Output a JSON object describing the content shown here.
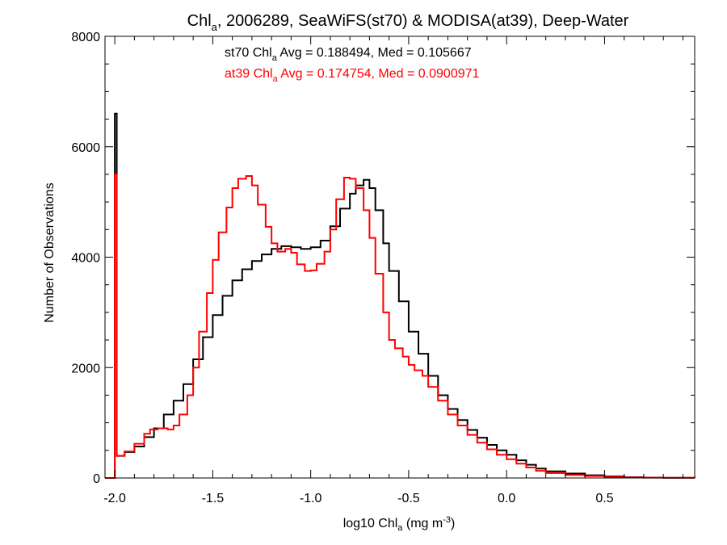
{
  "chart_data": {
    "type": "line",
    "step": true,
    "title": {
      "pre": "Chl",
      "sub": "a",
      "post": ", 2006289, SeaWiFS(st70) & MODISA(at39), Deep-Water"
    },
    "xlabel": {
      "pre": "log10 Chl",
      "sub": "a",
      "mid": " (mg m",
      "sup": "-3",
      "post": ")"
    },
    "ylabel": "Number of Observations",
    "xlim": [
      -2.05,
      0.96
    ],
    "ylim": [
      0,
      8000
    ],
    "xticks": [
      {
        "value": -2.0,
        "label": "-2.0"
      },
      {
        "value": -1.5,
        "label": "-1.5"
      },
      {
        "value": -1.0,
        "label": "-1.0"
      },
      {
        "value": -0.5,
        "label": "-0.5"
      },
      {
        "value": 0.0,
        "label": "0.0"
      },
      {
        "value": 0.5,
        "label": "0.5"
      }
    ],
    "yticks": [
      {
        "value": 0,
        "label": "0"
      },
      {
        "value": 2000,
        "label": "2000"
      },
      {
        "value": 4000,
        "label": "4000"
      },
      {
        "value": 6000,
        "label": "6000"
      },
      {
        "value": 8000,
        "label": "8000"
      }
    ],
    "grid": false,
    "annotations": [
      {
        "series": "st70",
        "pre": "st70 Chl",
        "sub": "a",
        "post": " Avg = 0.188494, Med = 0.105667",
        "color": "#000000"
      },
      {
        "series": "at39",
        "pre": "at39 Chl",
        "sub": "a",
        "post": " Avg = 0.174754, Med = 0.0900971",
        "color": "#ff0000"
      }
    ],
    "series": [
      {
        "name": "st70",
        "color": "#000000",
        "points": [
          [
            -2.05,
            0
          ],
          [
            -2.0,
            0
          ],
          [
            -2.0,
            6600
          ],
          [
            -1.99,
            6600
          ],
          [
            -1.99,
            400
          ],
          [
            -1.95,
            470
          ],
          [
            -1.9,
            570
          ],
          [
            -1.85,
            740
          ],
          [
            -1.8,
            900
          ],
          [
            -1.75,
            1150
          ],
          [
            -1.7,
            1400
          ],
          [
            -1.65,
            1700
          ],
          [
            -1.6,
            2150
          ],
          [
            -1.55,
            2550
          ],
          [
            -1.5,
            2950
          ],
          [
            -1.45,
            3300
          ],
          [
            -1.4,
            3580
          ],
          [
            -1.35,
            3780
          ],
          [
            -1.3,
            3930
          ],
          [
            -1.25,
            4050
          ],
          [
            -1.2,
            4150
          ],
          [
            -1.15,
            4200
          ],
          [
            -1.1,
            4180
          ],
          [
            -1.05,
            4150
          ],
          [
            -1.0,
            4180
          ],
          [
            -0.95,
            4300
          ],
          [
            -0.9,
            4560
          ],
          [
            -0.85,
            4880
          ],
          [
            -0.8,
            5150
          ],
          [
            -0.77,
            5300
          ],
          [
            -0.73,
            5400
          ],
          [
            -0.7,
            5250
          ],
          [
            -0.67,
            4850
          ],
          [
            -0.63,
            4250
          ],
          [
            -0.6,
            3750
          ],
          [
            -0.55,
            3200
          ],
          [
            -0.5,
            2650
          ],
          [
            -0.45,
            2250
          ],
          [
            -0.4,
            1850
          ],
          [
            -0.35,
            1500
          ],
          [
            -0.3,
            1250
          ],
          [
            -0.25,
            1050
          ],
          [
            -0.2,
            870
          ],
          [
            -0.15,
            730
          ],
          [
            -0.1,
            600
          ],
          [
            -0.05,
            500
          ],
          [
            0.0,
            420
          ],
          [
            0.05,
            320
          ],
          [
            0.1,
            240
          ],
          [
            0.15,
            170
          ],
          [
            0.2,
            120
          ],
          [
            0.3,
            80
          ],
          [
            0.4,
            50
          ],
          [
            0.5,
            30
          ],
          [
            0.6,
            15
          ],
          [
            0.7,
            8
          ],
          [
            0.8,
            4
          ],
          [
            0.96,
            2
          ]
        ]
      },
      {
        "name": "at39",
        "color": "#ff0000",
        "points": [
          [
            -2.05,
            0
          ],
          [
            -2.0,
            0
          ],
          [
            -2.0,
            5500
          ],
          [
            -1.99,
            5500
          ],
          [
            -1.99,
            400
          ],
          [
            -1.95,
            480
          ],
          [
            -1.9,
            620
          ],
          [
            -1.85,
            800
          ],
          [
            -1.82,
            880
          ],
          [
            -1.78,
            900
          ],
          [
            -1.73,
            880
          ],
          [
            -1.7,
            950
          ],
          [
            -1.67,
            1150
          ],
          [
            -1.63,
            1500
          ],
          [
            -1.6,
            2000
          ],
          [
            -1.57,
            2650
          ],
          [
            -1.53,
            3350
          ],
          [
            -1.5,
            3950
          ],
          [
            -1.47,
            4450
          ],
          [
            -1.43,
            4900
          ],
          [
            -1.4,
            5250
          ],
          [
            -1.37,
            5420
          ],
          [
            -1.33,
            5470
          ],
          [
            -1.3,
            5300
          ],
          [
            -1.27,
            4950
          ],
          [
            -1.23,
            4550
          ],
          [
            -1.2,
            4250
          ],
          [
            -1.17,
            4100
          ],
          [
            -1.13,
            4150
          ],
          [
            -1.1,
            4080
          ],
          [
            -1.07,
            3870
          ],
          [
            -1.03,
            3750
          ],
          [
            -1.0,
            3760
          ],
          [
            -0.97,
            3880
          ],
          [
            -0.93,
            4100
          ],
          [
            -0.9,
            4500
          ],
          [
            -0.87,
            5050
          ],
          [
            -0.83,
            5440
          ],
          [
            -0.8,
            5420
          ],
          [
            -0.77,
            5250
          ],
          [
            -0.73,
            4850
          ],
          [
            -0.7,
            4350
          ],
          [
            -0.67,
            3700
          ],
          [
            -0.63,
            3000
          ],
          [
            -0.6,
            2500
          ],
          [
            -0.57,
            2350
          ],
          [
            -0.53,
            2200
          ],
          [
            -0.5,
            2050
          ],
          [
            -0.47,
            1950
          ],
          [
            -0.43,
            1850
          ],
          [
            -0.4,
            1650
          ],
          [
            -0.35,
            1400
          ],
          [
            -0.3,
            1150
          ],
          [
            -0.25,
            950
          ],
          [
            -0.2,
            780
          ],
          [
            -0.15,
            640
          ],
          [
            -0.1,
            520
          ],
          [
            -0.05,
            420
          ],
          [
            0.0,
            340
          ],
          [
            0.05,
            260
          ],
          [
            0.1,
            190
          ],
          [
            0.15,
            130
          ],
          [
            0.2,
            90
          ],
          [
            0.3,
            55
          ],
          [
            0.4,
            35
          ],
          [
            0.5,
            20
          ],
          [
            0.6,
            10
          ],
          [
            0.7,
            5
          ],
          [
            0.8,
            3
          ],
          [
            0.96,
            1
          ]
        ]
      }
    ]
  }
}
